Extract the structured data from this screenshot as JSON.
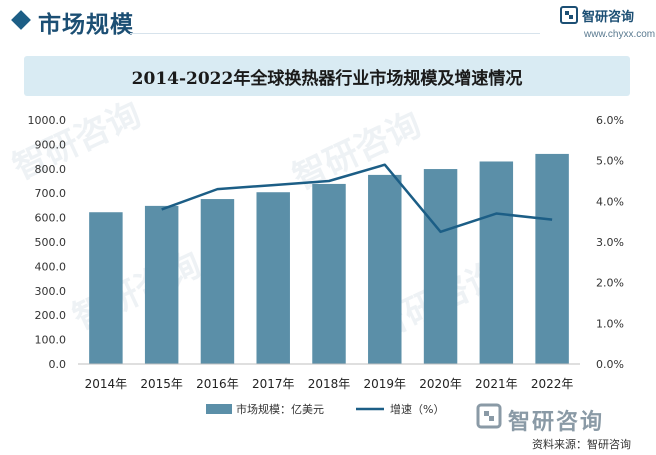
{
  "header": {
    "title": "市场规模",
    "brand_name": "智研咨询",
    "brand_url": "www.chyxx.com"
  },
  "footer": {
    "brand": "智研咨询",
    "source": "资料来源：智研咨询"
  },
  "chart_data": {
    "type": "bar",
    "title": "2014-2022年全球换热器行业市场规模及增速情况",
    "categories": [
      "2014年",
      "2015年",
      "2016年",
      "2017年",
      "2018年",
      "2019年",
      "2020年",
      "2021年",
      "2022年"
    ],
    "series": [
      {
        "name": "市场规模：亿美元",
        "type": "bar",
        "axis": "left",
        "color": "#5b8fa8",
        "values": [
          622,
          648,
          676,
          704,
          738,
          775,
          799,
          830,
          861
        ]
      },
      {
        "name": "增速（%）",
        "type": "line",
        "axis": "right",
        "color": "#1c5e86",
        "values": [
          null,
          3.8,
          4.3,
          4.4,
          4.5,
          4.9,
          3.25,
          3.7,
          3.55
        ]
      }
    ],
    "y_left": {
      "min": 0,
      "max": 1000,
      "ticks": [
        "0.0",
        "100.0",
        "200.0",
        "300.0",
        "400.0",
        "500.0",
        "600.0",
        "700.0",
        "800.0",
        "900.0",
        "1000.0"
      ]
    },
    "y_right": {
      "min": 0,
      "max": 6,
      "ticks": [
        "0.0%",
        "1.0%",
        "2.0%",
        "3.0%",
        "4.0%",
        "5.0%",
        "6.0%"
      ]
    },
    "legend_position": "bottom",
    "grid": false
  }
}
